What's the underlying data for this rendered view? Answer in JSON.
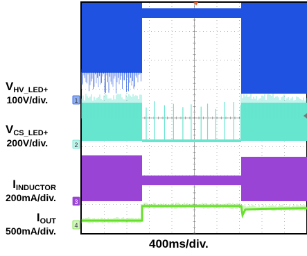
{
  "chart_data": {
    "type": "line",
    "time_per_div": "400ms/div.",
    "grid": true,
    "grid_divisions": {
      "x": 10,
      "y": 8
    },
    "channels": [
      {
        "id": "1",
        "label_main": "V",
        "label_sub": "HV_LED+",
        "scale": "100V/div.",
        "color": "#1f52e0"
      },
      {
        "id": "2",
        "label_main": "V",
        "label_sub": "CS_LED+",
        "scale": "200V/div.",
        "color": "#66e5cf"
      },
      {
        "id": "3",
        "label_main": "I",
        "label_sub": "INDUCTOR",
        "scale": "200mA/div.",
        "color": "#9a44d6"
      },
      {
        "id": "4",
        "label_main": "I",
        "label_sub": "OUT",
        "scale": "500mA/div.",
        "color": "#66e02a"
      }
    ]
  }
}
